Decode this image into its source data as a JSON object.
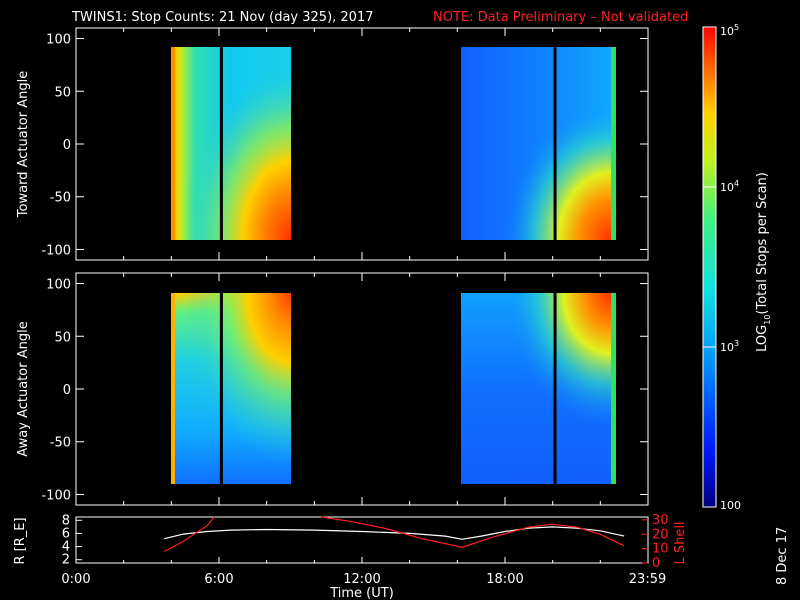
{
  "title": "TWINS1: Stop Counts: 21 Nov (day 325), 2017",
  "note": "NOTE: Data Preliminary – Not validated",
  "date_stamp": "8 Dec 17",
  "colors": {
    "note": "#ff2020",
    "background": "#000000",
    "axes": "#ffffff",
    "r_line": "#ffffff",
    "lshell_line": "#ff2020"
  },
  "chart_data": [
    {
      "type": "heatmap",
      "ylabel": "Toward Actuator Angle",
      "ylim": [
        -110,
        110
      ],
      "yticks": [
        100,
        50,
        0,
        -50,
        -100
      ],
      "xlim_hours": [
        0,
        24
      ],
      "data_segments_hours": [
        [
          3.7,
          9.0
        ],
        [
          16.2,
          23.4
        ]
      ],
      "dark_gaps_hours": [
        6.1,
        20.1,
        23.1
      ]
    },
    {
      "type": "heatmap",
      "ylabel": "Away Actuator Angle",
      "ylim": [
        -110,
        110
      ],
      "yticks": [
        100,
        50,
        0,
        -50,
        -100
      ],
      "xlim_hours": [
        0,
        24
      ],
      "data_segments_hours": [
        [
          3.7,
          9.0
        ],
        [
          16.2,
          23.4
        ]
      ],
      "dark_gaps_hours": [
        6.1,
        20.1,
        23.1
      ]
    },
    {
      "type": "line",
      "ylabel_left": "R [R_E]",
      "ylabel_right": "L Shell",
      "yticks_left": [
        8,
        6,
        4,
        2
      ],
      "yticks_right": [
        30,
        20,
        10,
        0
      ],
      "ylim_left": [
        1.5,
        8.5
      ],
      "ylim_right": [
        0,
        32
      ],
      "xlabel": "Time (UT)",
      "xtick_labels": [
        "0:00",
        "6:00",
        "12:00",
        "18:00",
        "23:59"
      ],
      "xtick_hours": [
        0,
        6,
        12,
        18,
        23.98
      ],
      "series": [
        {
          "axis": "left",
          "color": "#ffffff",
          "x": [
            3.7,
            4.5,
            5.5,
            6.5,
            8,
            10,
            12,
            14,
            15.5,
            16.2,
            17,
            18,
            19,
            20,
            21,
            22,
            23
          ],
          "y": [
            5.2,
            5.9,
            6.3,
            6.5,
            6.6,
            6.5,
            6.3,
            6.0,
            5.6,
            5.1,
            5.6,
            6.3,
            6.8,
            7.0,
            6.8,
            6.4,
            5.6
          ]
        },
        {
          "axis": "right",
          "color": "#ff2020",
          "x": [
            3.7,
            4.5,
            5.5,
            5.8
          ],
          "y": [
            8,
            15,
            26,
            32
          ]
        },
        {
          "axis": "right",
          "color": "#ff2020",
          "x": [
            10.3,
            11.5,
            13,
            14.5,
            16.2,
            17.5,
            19,
            20,
            21,
            22,
            23
          ],
          "y": [
            32,
            29,
            24,
            17,
            11,
            18,
            25,
            27,
            25,
            20,
            12
          ]
        }
      ]
    }
  ],
  "colorbar": {
    "label": "LOG10(Total Stops per Scan)",
    "label_main": "LOG",
    "label_sub": "10",
    "label_rest": "(Total Stops per Scan)",
    "ticks": [
      {
        "main": "10",
        "exp": "5"
      },
      {
        "main": "10",
        "exp": "4"
      },
      {
        "main": "10",
        "exp": "3"
      },
      {
        "main": "100",
        "exp": ""
      }
    ],
    "log_range": [
      2,
      5
    ]
  }
}
